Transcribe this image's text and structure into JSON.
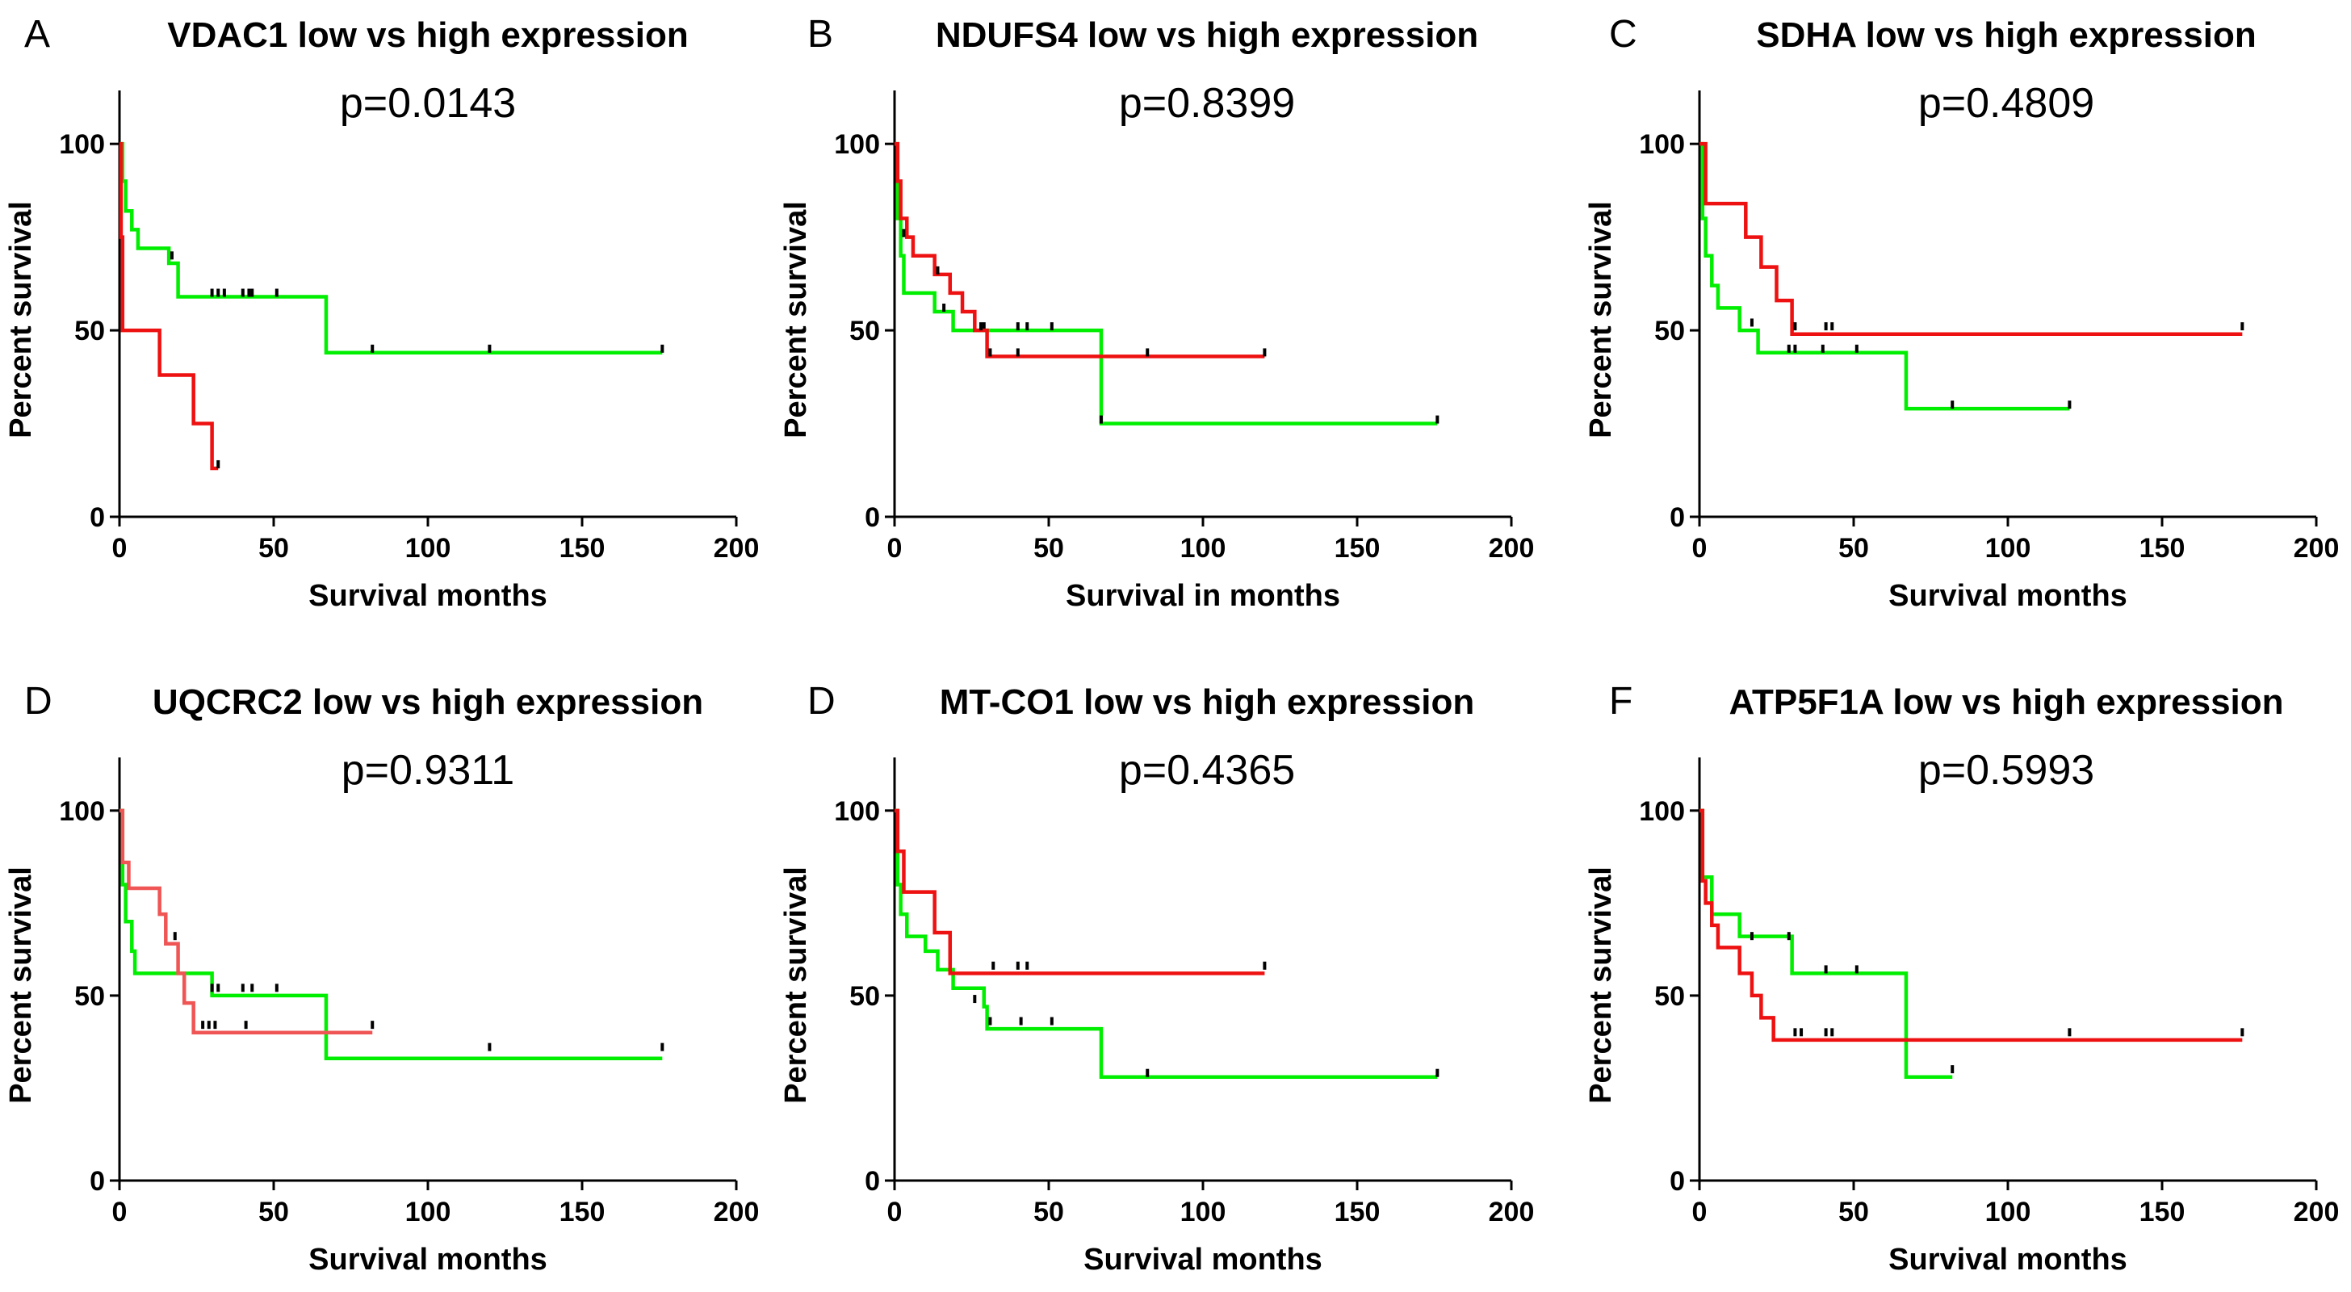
{
  "colors": {
    "high": "#00ee00",
    "low": "#ee1111",
    "low_light": "#f05555"
  },
  "chart_data": [
    {
      "type": "line",
      "letter": "A",
      "title": "VDAC1 low vs high expression",
      "pvalue": "p=0.0143",
      "xlabel": "Survival months",
      "ylabel": "Percent survival",
      "xlim": [
        0,
        200
      ],
      "ylim": [
        0,
        110
      ],
      "xticks": [
        "0",
        "50",
        "100",
        "150",
        "200"
      ],
      "yticks": [
        "0",
        "50",
        "100"
      ],
      "series": [
        {
          "name": "high",
          "color": "high",
          "steps": [
            [
              0,
              100
            ],
            [
              1,
              90
            ],
            [
              2,
              82
            ],
            [
              4,
              77
            ],
            [
              6,
              72
            ],
            [
              16,
              68
            ],
            [
              19,
              59
            ],
            [
              67,
              44
            ],
            [
              176,
              44
            ]
          ],
          "censors": [
            [
              17,
              69
            ],
            [
              30,
              59
            ],
            [
              32,
              59
            ],
            [
              34,
              59
            ],
            [
              40,
              59
            ],
            [
              42,
              59
            ],
            [
              43,
              59
            ],
            [
              51,
              59
            ],
            [
              82,
              44
            ],
            [
              120,
              44
            ],
            [
              176,
              44
            ]
          ]
        },
        {
          "name": "low",
          "color": "low",
          "steps": [
            [
              0,
              100
            ],
            [
              0.5,
              75
            ],
            [
              1,
              50
            ],
            [
              13,
              38
            ],
            [
              24,
              25
            ],
            [
              30,
              13
            ],
            [
              32,
              13
            ]
          ],
          "censors": [
            [
              32,
              13
            ]
          ]
        }
      ]
    },
    {
      "type": "line",
      "letter": "B",
      "title": "NDUFS4 low vs high expression",
      "pvalue": "p=0.8399",
      "xlabel": "Survival in months",
      "ylabel": "Percent survival",
      "xlim": [
        0,
        200
      ],
      "ylim": [
        0,
        110
      ],
      "xticks": [
        "0",
        "50",
        "100",
        "150",
        "200"
      ],
      "yticks": [
        "0",
        "50",
        "100"
      ],
      "series": [
        {
          "name": "high",
          "color": "high",
          "steps": [
            [
              0,
              100
            ],
            [
              1,
              80
            ],
            [
              2,
              70
            ],
            [
              3,
              60
            ],
            [
              13,
              55
            ],
            [
              19,
              50
            ],
            [
              67,
              25
            ],
            [
              176,
              25
            ]
          ],
          "censors": [
            [
              16,
              55
            ],
            [
              29,
              50
            ],
            [
              40,
              50
            ],
            [
              43,
              50
            ],
            [
              51,
              50
            ],
            [
              67,
              25
            ],
            [
              176,
              25
            ]
          ]
        },
        {
          "name": "low",
          "color": "low",
          "steps": [
            [
              0,
              100
            ],
            [
              1,
              90
            ],
            [
              2,
              80
            ],
            [
              4,
              75
            ],
            [
              6,
              70
            ],
            [
              13,
              65
            ],
            [
              18,
              60
            ],
            [
              22,
              55
            ],
            [
              26,
              50
            ],
            [
              30,
              43
            ],
            [
              120,
              43
            ]
          ],
          "censors": [
            [
              3,
              75
            ],
            [
              14,
              65
            ],
            [
              28,
              50
            ],
            [
              31,
              43
            ],
            [
              40,
              43
            ],
            [
              82,
              43
            ],
            [
              120,
              43
            ]
          ]
        }
      ]
    },
    {
      "type": "line",
      "letter": "C",
      "title": "SDHA low vs high expression",
      "pvalue": "p=0.4809",
      "xlabel": "Survival months",
      "ylabel": "Percent survival",
      "xlim": [
        0,
        200
      ],
      "ylim": [
        0,
        110
      ],
      "xticks": [
        "0",
        "50",
        "100",
        "150",
        "200"
      ],
      "yticks": [
        "0",
        "50",
        "100"
      ],
      "series": [
        {
          "name": "high",
          "color": "high",
          "steps": [
            [
              0,
              100
            ],
            [
              1,
              80
            ],
            [
              2,
              70
            ],
            [
              4,
              62
            ],
            [
              6,
              56
            ],
            [
              13,
              50
            ],
            [
              19,
              44
            ],
            [
              67,
              29
            ],
            [
              120,
              29
            ]
          ],
          "censors": [
            [
              17,
              51
            ],
            [
              29,
              44
            ],
            [
              31,
              44
            ],
            [
              40,
              44
            ],
            [
              51,
              44
            ],
            [
              82,
              29
            ],
            [
              120,
              29
            ]
          ]
        },
        {
          "name": "low",
          "color": "low",
          "steps": [
            [
              0,
              100
            ],
            [
              2,
              84
            ],
            [
              15,
              75
            ],
            [
              20,
              67
            ],
            [
              25,
              58
            ],
            [
              30,
              49
            ],
            [
              176,
              49
            ]
          ],
          "censors": [
            [
              31,
              50
            ],
            [
              41,
              50
            ],
            [
              43,
              50
            ],
            [
              176,
              50
            ]
          ]
        }
      ]
    },
    {
      "type": "line",
      "letter": "D",
      "title": "UQCRC2 low vs high expression",
      "pvalue": "p=0.9311",
      "xlabel": "Survival months",
      "ylabel": "Percent survival",
      "xlim": [
        0,
        200
      ],
      "ylim": [
        0,
        110
      ],
      "xticks": [
        "0",
        "50",
        "100",
        "150",
        "200"
      ],
      "yticks": [
        "0",
        "50",
        "100"
      ],
      "series": [
        {
          "name": "high",
          "color": "high",
          "steps": [
            [
              0,
              100
            ],
            [
              1,
              80
            ],
            [
              2,
              70
            ],
            [
              4,
              62
            ],
            [
              5,
              56
            ],
            [
              30,
              50
            ],
            [
              67,
              33
            ],
            [
              176,
              33
            ]
          ],
          "censors": [
            [
              30,
              51
            ],
            [
              32,
              51
            ],
            [
              40,
              51
            ],
            [
              43,
              51
            ],
            [
              51,
              51
            ],
            [
              120,
              35
            ],
            [
              176,
              35
            ]
          ]
        },
        {
          "name": "low",
          "color": "low_light",
          "steps": [
            [
              0,
              100
            ],
            [
              1,
              86
            ],
            [
              3,
              79
            ],
            [
              13,
              72
            ],
            [
              15,
              64
            ],
            [
              19,
              56
            ],
            [
              21,
              48
            ],
            [
              24,
              40
            ],
            [
              82,
              40
            ]
          ],
          "censors": [
            [
              18,
              65
            ],
            [
              27,
              41
            ],
            [
              29,
              41
            ],
            [
              31,
              41
            ],
            [
              41,
              41
            ],
            [
              82,
              41
            ]
          ]
        }
      ]
    },
    {
      "type": "line",
      "letter": "D",
      "title": "MT-CO1 low vs high expression",
      "pvalue": "p=0.4365",
      "xlabel": "Survival months",
      "ylabel": "Percent survival",
      "xlim": [
        0,
        200
      ],
      "ylim": [
        0,
        110
      ],
      "xticks": [
        "0",
        "50",
        "100",
        "150",
        "200"
      ],
      "yticks": [
        "0",
        "50",
        "100"
      ],
      "series": [
        {
          "name": "high",
          "color": "high",
          "steps": [
            [
              0,
              100
            ],
            [
              1,
              80
            ],
            [
              2,
              72
            ],
            [
              4,
              66
            ],
            [
              10,
              62
            ],
            [
              14,
              57
            ],
            [
              19,
              52
            ],
            [
              29,
              47
            ],
            [
              30,
              41
            ],
            [
              67,
              28
            ],
            [
              176,
              28
            ]
          ],
          "censors": [
            [
              26,
              48
            ],
            [
              31,
              42
            ],
            [
              41,
              42
            ],
            [
              51,
              42
            ],
            [
              82,
              28
            ],
            [
              176,
              28
            ]
          ]
        },
        {
          "name": "low",
          "color": "low",
          "steps": [
            [
              0,
              100
            ],
            [
              1,
              89
            ],
            [
              3,
              78
            ],
            [
              13,
              67
            ],
            [
              18,
              56
            ],
            [
              120,
              56
            ]
          ],
          "censors": [
            [
              32,
              57
            ],
            [
              40,
              57
            ],
            [
              43,
              57
            ],
            [
              120,
              57
            ]
          ]
        }
      ]
    },
    {
      "type": "line",
      "letter": "F",
      "title": "ATP5F1A low vs high expression",
      "pvalue": "p=0.5993",
      "xlabel": "Survival months",
      "ylabel": "Percent survival",
      "xlim": [
        0,
        200
      ],
      "ylim": [
        0,
        110
      ],
      "xticks": [
        "0",
        "50",
        "100",
        "150",
        "200"
      ],
      "yticks": [
        "0",
        "50",
        "100"
      ],
      "series": [
        {
          "name": "high",
          "color": "high",
          "steps": [
            [
              0,
              100
            ],
            [
              1,
              82
            ],
            [
              4,
              72
            ],
            [
              13,
              66
            ],
            [
              30,
              56
            ],
            [
              67,
              28
            ],
            [
              82,
              28
            ]
          ],
          "censors": [
            [
              17,
              65
            ],
            [
              29,
              65
            ],
            [
              41,
              56
            ],
            [
              51,
              56
            ],
            [
              82,
              29
            ]
          ]
        },
        {
          "name": "low",
          "color": "low",
          "steps": [
            [
              0,
              100
            ],
            [
              1,
              81
            ],
            [
              2,
              75
            ],
            [
              4,
              69
            ],
            [
              6,
              63
            ],
            [
              13,
              56
            ],
            [
              17,
              50
            ],
            [
              20,
              44
            ],
            [
              24,
              38
            ],
            [
              176,
              38
            ]
          ],
          "censors": [
            [
              31,
              39
            ],
            [
              33,
              39
            ],
            [
              41,
              39
            ],
            [
              43,
              39
            ],
            [
              120,
              39
            ],
            [
              176,
              39
            ]
          ]
        }
      ]
    }
  ]
}
